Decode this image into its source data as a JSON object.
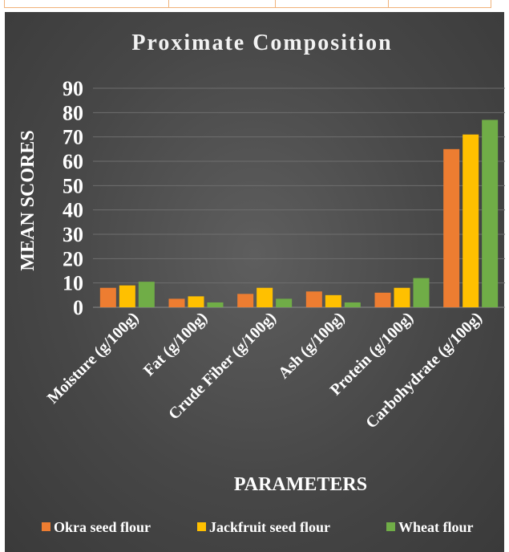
{
  "chart_data": {
    "type": "bar",
    "title": "Proximate Composition",
    "xlabel": "PARAMETERS",
    "ylabel": "MEAN SCORES",
    "ylim": [
      0,
      90
    ],
    "yticks": [
      0,
      10,
      20,
      30,
      40,
      50,
      60,
      70,
      80,
      90
    ],
    "grid": true,
    "legend_position": "bottom",
    "categories": [
      "Moisture (g/100g)",
      "Fat (g/100g)",
      "Crude Fiber (g/100g)",
      "Ash (g/100g)",
      "Protein (g/100g)",
      "Carbohydrate (g/100g)"
    ],
    "series": [
      {
        "name": "Okra seed flour",
        "color": "#ed7d31",
        "values": [
          8.0,
          3.5,
          5.5,
          6.5,
          6.0,
          65.0
        ]
      },
      {
        "name": "Jackfruit seed flour",
        "color": "#ffc000",
        "values": [
          9.0,
          4.5,
          8.0,
          5.0,
          8.0,
          71.0
        ]
      },
      {
        "name": "Wheat flour",
        "color": "#70ad47",
        "values": [
          10.5,
          2.0,
          3.5,
          2.0,
          12.0,
          77.0
        ]
      }
    ]
  }
}
